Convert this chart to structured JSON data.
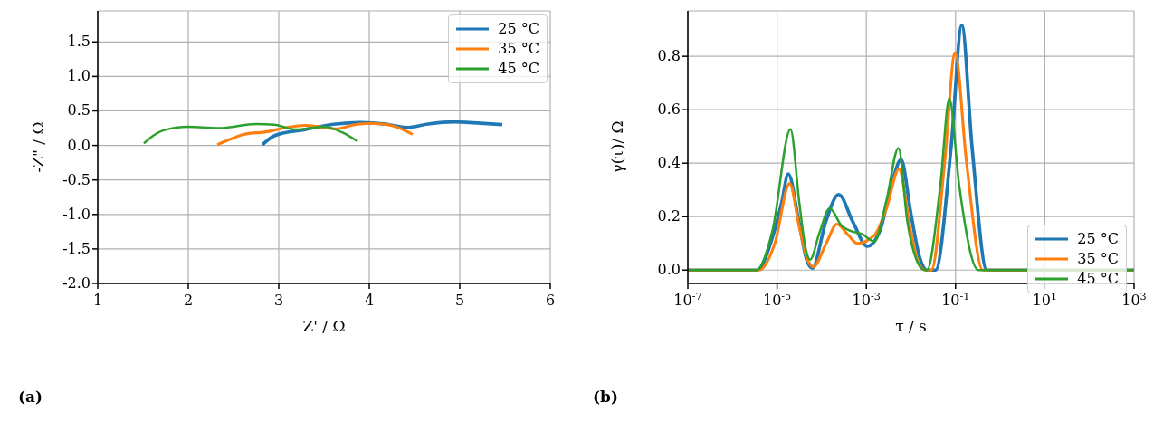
{
  "chart_data": [
    {
      "type": "line",
      "xlabel": "Z' / Ω",
      "ylabel": "-Z\" / Ω",
      "xlim": [
        1,
        6
      ],
      "xticks": [
        1,
        2,
        3,
        4,
        5,
        6
      ],
      "ylim": [
        -2.0,
        1.95
      ],
      "yticks": [
        {
          "value": -2,
          "label": "-2.0"
        },
        {
          "value": -1.5,
          "label": "-1.5"
        },
        {
          "value": -1,
          "label": "-1.0"
        },
        {
          "value": -0.5,
          "label": "-0.5"
        },
        {
          "value": 0,
          "label": "0.0"
        },
        {
          "value": 0.5,
          "label": "0.5"
        },
        {
          "value": 1,
          "label": "1.0"
        },
        {
          "value": 1.5,
          "label": "1.5"
        }
      ],
      "grid": true,
      "legend": "top right",
      "annotations": [
        "(a)"
      ],
      "series": [
        {
          "name": "25 °C",
          "color": "#1f77b4",
          "x": [
            2.82,
            2.95,
            3.29,
            3.63,
            3.9,
            4.18,
            4.41,
            4.65,
            4.93,
            5.23,
            5.47
          ],
          "values": [
            0.01,
            0.14,
            0.23,
            0.31,
            0.33,
            0.31,
            0.26,
            0.31,
            0.34,
            0.32,
            0.3
          ]
        },
        {
          "name": "35 °C",
          "color": "#ff7f0e",
          "x": [
            2.32,
            2.41,
            2.61,
            2.88,
            3.09,
            3.29,
            3.5,
            3.63,
            3.84,
            4.01,
            4.21,
            4.48
          ],
          "values": [
            0.01,
            0.06,
            0.16,
            0.2,
            0.26,
            0.29,
            0.26,
            0.24,
            0.3,
            0.32,
            0.3,
            0.16
          ]
        },
        {
          "name": "45 °C",
          "color": "#2ca02c",
          "x": [
            1.51,
            1.59,
            1.73,
            2.0,
            2.34,
            2.75,
            2.95,
            3.19,
            3.5,
            3.7,
            3.87
          ],
          "values": [
            0.03,
            0.12,
            0.22,
            0.27,
            0.25,
            0.31,
            0.3,
            0.23,
            0.27,
            0.19,
            0.06
          ]
        }
      ]
    },
    {
      "type": "line",
      "xlabel": "τ / s",
      "ylabel": "γ(τ)/ Ω",
      "log": "x",
      "xlim": [
        1e-07,
        1000
      ],
      "xticks": [
        {
          "value": 1e-07,
          "label": "10$^{-7}$"
        },
        {
          "value": 1e-05,
          "label": "10$^{-5}$"
        },
        {
          "value": 0.001,
          "label": "10$^{-3}$"
        },
        {
          "value": 0.1,
          "label": "10$^{-1}$"
        },
        {
          "value": 10,
          "label": "10$^{1}$"
        },
        {
          "value": 1000,
          "label": "10$^{3}$"
        }
      ],
      "ylim": [
        -0.05,
        0.97
      ],
      "yticks": [
        {
          "value": 0,
          "label": "0.0"
        },
        {
          "value": 0.2,
          "label": "0.2"
        },
        {
          "value": 0.4,
          "label": "0.4"
        },
        {
          "value": 0.6,
          "label": "0.6"
        },
        {
          "value": 0.8,
          "label": "0.8"
        }
      ],
      "grid": true,
      "legend": "right",
      "annotations": [
        "(b)"
      ],
      "series": [
        {
          "name": "25 °C",
          "color": "#1f77b4",
          "x": [
            1e-07,
            3.55e-06,
            8.13e-06,
            1.26e-05,
            1.78e-05,
            3.09e-05,
            4.57e-05,
            6.17e-05,
            0.000123,
            0.00024,
            0.000501,
            0.00105,
            0.00204,
            0.0038,
            0.00603,
            0.00977,
            0.0155,
            0.0229,
            0.0355,
            0.0794,
            0.138,
            0.234,
            0.501,
            1000
          ],
          "values": [
            0,
            0,
            0.13,
            0.25,
            0.36,
            0.18,
            0.04,
            0.007,
            0.18,
            0.283,
            0.18,
            0.089,
            0.15,
            0.33,
            0.414,
            0.22,
            0.05,
            0,
            0,
            0.46,
            0.916,
            0.46,
            0,
            0
          ]
        },
        {
          "name": "35 °C",
          "color": "#ff7f0e",
          "x": [
            1e-07,
            3.98e-06,
            8.91e-06,
            1.91e-05,
            3.16e-05,
            4.79e-05,
            6.46e-05,
            0.000126,
            0.000219,
            0.000398,
            0.000631,
            0.00151,
            0.00282,
            0.00537,
            0.00977,
            0.0145,
            0.0209,
            0.0288,
            0.0575,
            0.0977,
            0.174,
            0.407,
            1000
          ],
          "values": [
            0,
            0,
            0.1,
            0.324,
            0.16,
            0.04,
            0.012,
            0.1,
            0.172,
            0.13,
            0.1,
            0.13,
            0.23,
            0.378,
            0.15,
            0.03,
            0,
            0,
            0.41,
            0.814,
            0.41,
            0,
            0
          ]
        },
        {
          "name": "45 °C",
          "color": "#2ca02c",
          "x": [
            1e-07,
            3.55e-06,
            7.94e-06,
            2e-05,
            3.16e-05,
            4.37e-05,
            5.5e-05,
            8.91e-05,
            0.000151,
            0.000282,
            0.000437,
            0.000813,
            0.00151,
            0.00282,
            0.00525,
            0.00832,
            0.0132,
            0.0204,
            0.0229,
            0.0457,
            0.0724,
            0.12,
            0.324,
            1000
          ],
          "values": [
            0,
            0,
            0.15,
            0.527,
            0.25,
            0.08,
            0.039,
            0.14,
            0.231,
            0.165,
            0.147,
            0.134,
            0.107,
            0.26,
            0.457,
            0.18,
            0.04,
            0,
            0,
            0.32,
            0.642,
            0.32,
            0,
            0
          ]
        }
      ]
    }
  ]
}
